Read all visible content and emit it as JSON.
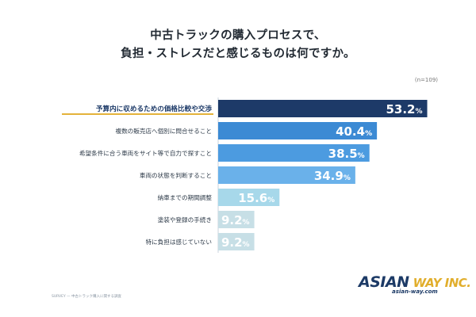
{
  "title": {
    "line1": "中古トラックの購入プロセスで、",
    "line2": "負担・ストレスだと感じるものは何ですか。"
  },
  "sample_size": "(n=109)",
  "footnote": "SURVEY — 中古トラック購入に関する調査",
  "logo": {
    "word1": "ASIAN",
    "word2": "WAY INC.",
    "url": "asian-way.com"
  },
  "colors": {
    "highlight": "#1d3a68",
    "bars": [
      "#1d3a68",
      "#3c8ad4",
      "#4c9be0",
      "#6ab1ea",
      "#a7d8ea",
      "#c7dfe6",
      "#c7dfe6"
    ],
    "underline": "#e4b23a"
  },
  "chart_data": {
    "type": "bar",
    "orientation": "horizontal",
    "categories": [
      "予算内に収めるための価格比較や交渉",
      "複数の販売店へ個別に問合せること",
      "希望条件に合う車両をサイト等で自力で探すこと",
      "車両の状態を判断すること",
      "納車までの期間調整",
      "塗装や登録の手続き",
      "特に負担は感じていない"
    ],
    "values": [
      53.2,
      40.4,
      38.5,
      34.9,
      15.6,
      9.2,
      9.2
    ],
    "unit": "%",
    "xlim": [
      0,
      55
    ],
    "grid": false,
    "legend": "none"
  }
}
